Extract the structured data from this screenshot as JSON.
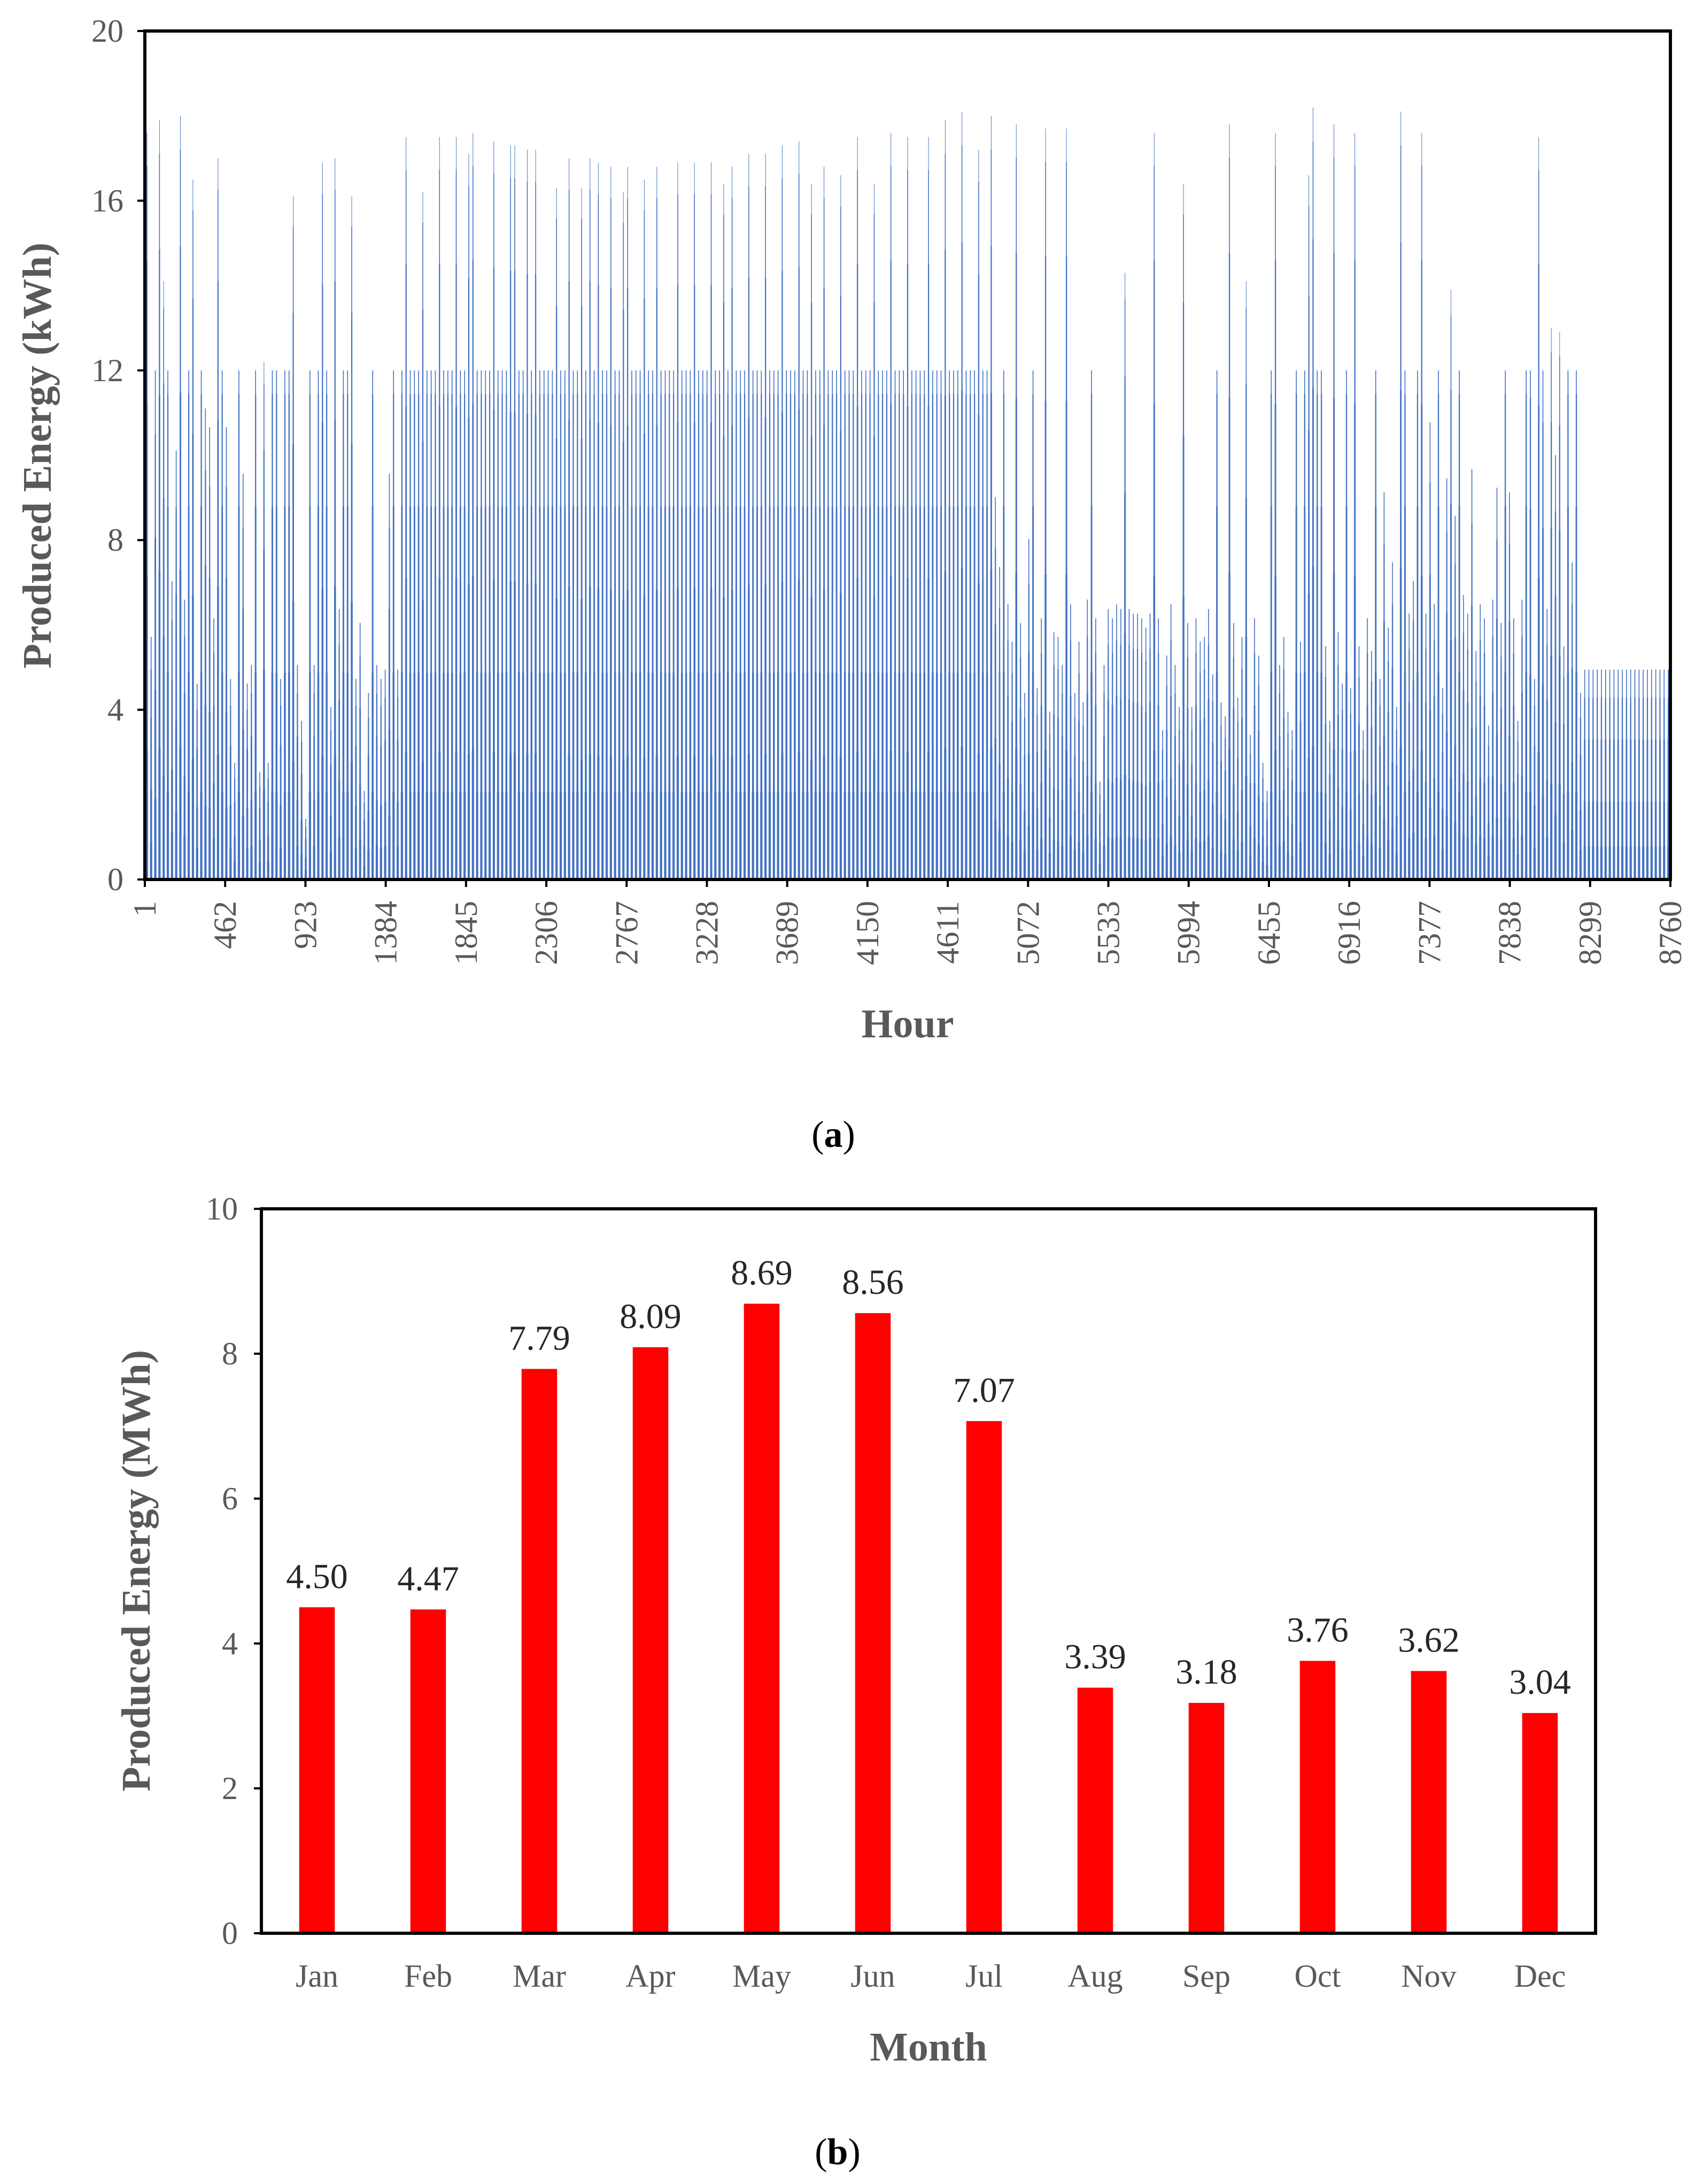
{
  "chart_data": [
    {
      "id": "a",
      "type": "bar",
      "panel_label": "(a)",
      "panel_letter": "a",
      "xlabel": "Hour",
      "ylabel": "Produced Energy (kWh)",
      "xlim": [
        1,
        8760
      ],
      "ylim": [
        0,
        20
      ],
      "yticks": [
        0,
        4,
        8,
        12,
        16,
        20
      ],
      "xticks": [
        1,
        462,
        923,
        1384,
        1845,
        2306,
        2767,
        3228,
        3689,
        4150,
        4611,
        5072,
        5533,
        5994,
        6455,
        6916,
        7377,
        7838,
        8299,
        8760
      ],
      "color": "#4472C4",
      "grid": false,
      "legend": "none",
      "series_note": "hourly production (8760 values); envelope approximated by daily (hour 12) peaks",
      "daily_peaks": [
        17.6,
        5.2,
        11.0,
        17.9,
        14.1,
        12.0,
        6.4,
        9.2,
        18.0,
        6.0,
        12.0,
        16.5,
        4.2,
        12.0,
        10.1,
        9.7,
        5.6,
        17.0,
        12.0,
        9.7,
        4.3,
        2.5,
        12.0,
        8.7,
        4.2,
        4.6,
        12.0,
        2.3,
        12.2,
        2.5,
        12.0,
        12.0,
        4.3,
        12.0,
        12.0,
        16.1,
        4.6,
        3.4,
        1.3,
        12.0,
        4.6,
        12.0,
        16.9,
        12.0,
        3.7,
        17.0,
        5.8,
        12.0,
        12.0,
        16.1,
        4.3,
        5.5,
        1.9,
        4.0,
        12.0,
        4.6,
        4.3,
        4.5,
        8.7,
        12.0,
        4.5,
        12.0,
        17.5,
        12.0,
        12.0,
        12.0,
        16.2,
        12.0,
        12.0,
        12.0,
        17.5,
        12.0,
        12.0,
        12.0,
        17.5,
        12.0,
        12.0,
        17.1,
        17.6,
        12.0,
        12.0,
        12.0,
        12.0,
        17.4,
        12.0,
        12.0,
        12.0,
        17.3,
        17.3,
        12.0,
        12.0,
        17.2,
        12.0,
        17.2,
        12.0,
        12.0,
        12.0,
        12.0,
        16.3,
        12.0,
        12.0,
        17.0,
        12.0,
        12.0,
        16.3,
        12.0,
        17.0,
        12.0,
        16.9,
        12.0,
        12.0,
        16.8,
        12.0,
        12.0,
        16.2,
        16.8,
        12.0,
        12.0,
        12.0,
        16.5,
        12.0,
        12.0,
        16.8,
        12.0,
        12.0,
        12.0,
        12.0,
        16.9,
        12.0,
        12.0,
        12.0,
        16.9,
        12.0,
        12.0,
        12.0,
        16.9,
        12.0,
        12.0,
        16.4,
        12.0,
        16.8,
        12.0,
        12.0,
        12.0,
        17.1,
        12.0,
        12.0,
        12.0,
        17.1,
        12.0,
        12.0,
        12.0,
        17.3,
        12.0,
        12.0,
        12.0,
        17.4,
        12.0,
        12.0,
        16.4,
        12.0,
        12.0,
        16.8,
        12.0,
        12.0,
        12.0,
        16.6,
        12.0,
        12.0,
        12.0,
        17.5,
        12.0,
        12.0,
        12.0,
        16.4,
        12.0,
        12.0,
        12.0,
        17.6,
        12.0,
        12.0,
        12.0,
        17.5,
        12.0,
        12.0,
        12.0,
        12.0,
        17.5,
        12.0,
        12.0,
        12.0,
        17.9,
        12.0,
        12.0,
        12.0,
        18.1,
        12.0,
        12.0,
        12.0,
        17.2,
        12.0,
        12.0,
        18.0,
        8.2,
        6.7,
        12.0,
        5.9,
        5.1,
        17.8,
        5.5,
        4.0,
        7.3,
        12.0,
        4.1,
        5.6,
        17.7,
        3.6,
        5.3,
        5.2,
        4.6,
        17.7,
        5.9,
        4.0,
        5.1,
        3.8,
        6.0,
        12.0,
        5.6,
        2.1,
        4.6,
        5.8,
        5.6,
        5.9,
        5.8,
        14.3,
        5.8,
        5.7,
        5.7,
        5.6,
        5.4,
        5.7,
        17.6,
        5.6,
        3.2,
        4.8,
        5.9,
        4.6,
        3.7,
        16.4,
        5.5,
        3.7,
        5.6,
        5.1,
        5.2,
        5.8,
        4.4,
        12.0,
        3.8,
        3.5,
        17.8,
        5.5,
        3.9,
        5.2,
        14.1,
        3.1,
        5.6,
        4.8,
        2.5,
        1.9,
        12.0,
        17.6,
        4.6,
        5.2,
        3.6,
        3.2,
        12.0,
        5.1,
        12.0,
        16.6,
        18.2,
        12.0,
        12.0,
        5.0,
        3.4,
        17.8,
        5.3,
        4.2,
        12.0,
        4.1,
        17.6,
        5.0,
        3.2,
        5.6,
        4.9,
        12.0,
        4.3,
        8.3,
        5.4,
        6.8,
        3.7,
        18.1,
        12.0,
        5.7,
        6.4,
        12.0,
        17.6,
        5.7,
        9.8,
        5.9,
        12.0,
        4.1,
        8.6,
        13.9,
        7.8,
        12.0,
        6.1,
        5.7,
        8.8,
        4.9,
        5.9,
        5.6,
        3.3,
        6.0,
        8.4,
        5.5,
        12.0,
        8.3,
        5.6,
        3.4,
        6.0,
        12.0,
        11.9,
        4.3,
        17.5,
        11.3,
        5.8,
        13.0,
        9.1,
        12.9,
        5.0,
        12.0,
        6.8,
        12.0,
        4.0,
        4.5
      ]
    },
    {
      "id": "b",
      "type": "bar",
      "panel_label": "(b)",
      "panel_letter": "b",
      "xlabel": "Month",
      "ylabel": "Produced Energy (MWh)",
      "ylim": [
        0,
        10
      ],
      "yticks": [
        0,
        2,
        4,
        6,
        8,
        10
      ],
      "color": "#FF0000",
      "grid": false,
      "legend": "none",
      "categories": [
        "Jan",
        "Feb",
        "Mar",
        "Apr",
        "May",
        "Jun",
        "Jul",
        "Aug",
        "Sep",
        "Oct",
        "Nov",
        "Dec"
      ],
      "values": [
        4.5,
        4.47,
        7.79,
        8.09,
        8.69,
        8.56,
        7.07,
        3.39,
        3.18,
        3.76,
        3.62,
        3.04
      ],
      "value_labels": [
        "4.50",
        "4.47",
        "7.79",
        "8.09",
        "8.69",
        "8.56",
        "7.07",
        "3.39",
        "3.18",
        "3.76",
        "3.62",
        "3.04"
      ]
    }
  ]
}
